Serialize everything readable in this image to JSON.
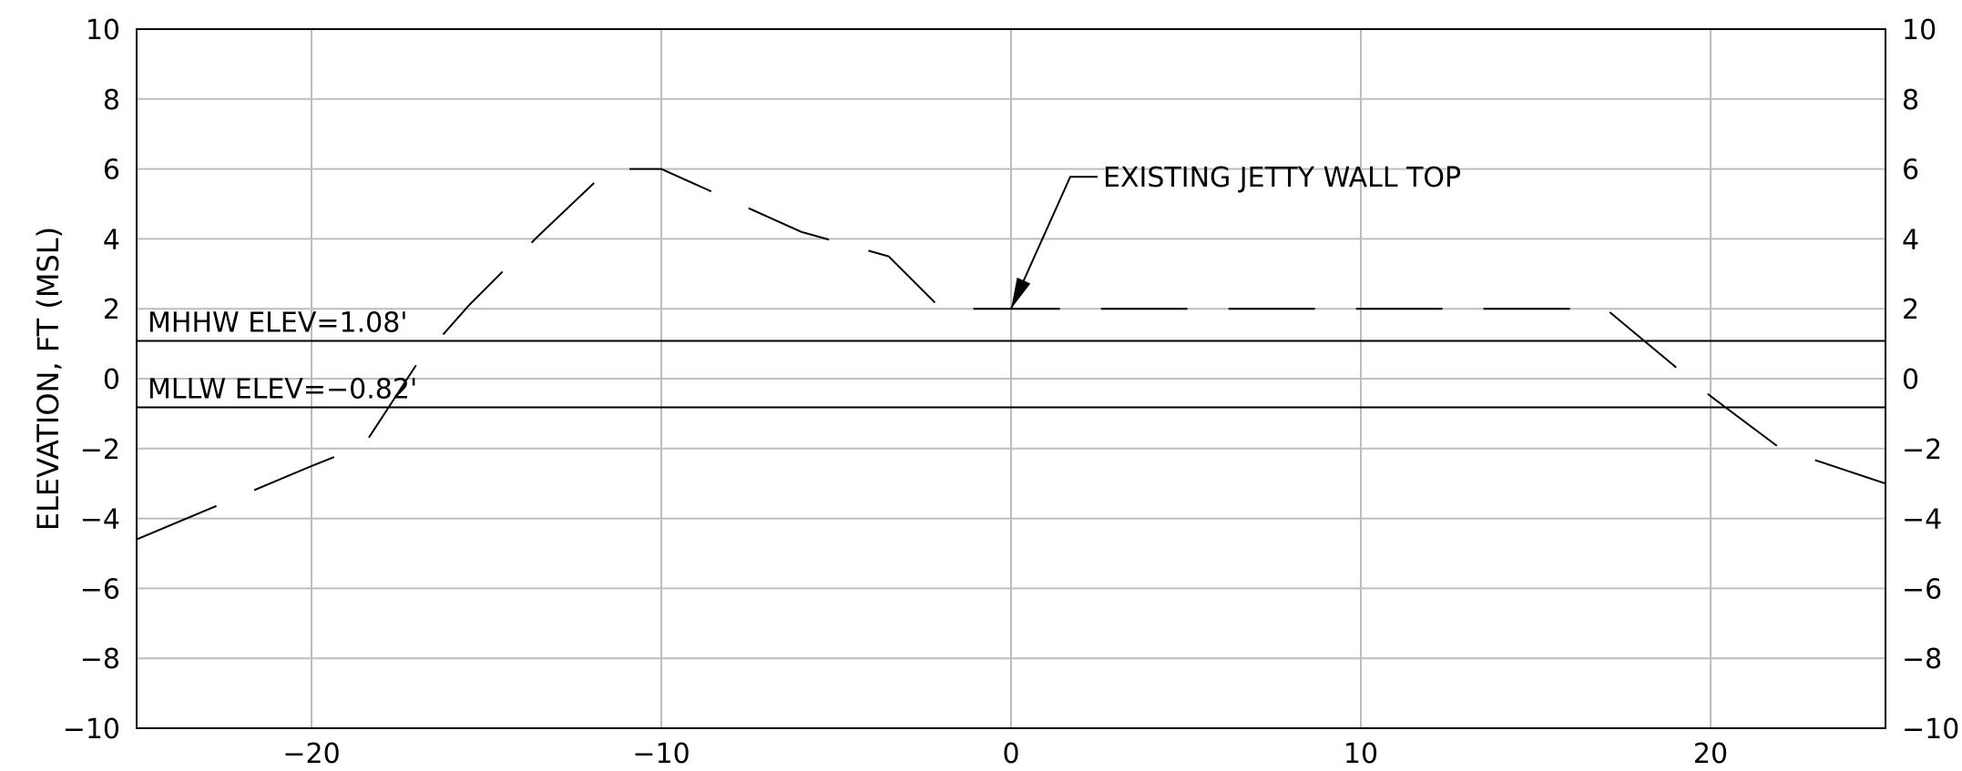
{
  "chart_data": {
    "type": "line",
    "title": "",
    "xlabel": "",
    "ylabel": "ELEVATION, FT (MSL)",
    "xlim": [
      -25,
      25
    ],
    "ylim": [
      -10,
      10
    ],
    "xticks": [
      -20,
      -10,
      0,
      10,
      20
    ],
    "xtick_labels": [
      "−20",
      "−10",
      "0",
      "10",
      "20"
    ],
    "yticks": [
      -10,
      -8,
      -6,
      -4,
      -2,
      0,
      2,
      4,
      6,
      8,
      10
    ],
    "ytick_labels": [
      "−10",
      "−8",
      "−6",
      "−4",
      "−2",
      "0",
      "2",
      "4",
      "6",
      "8",
      "10"
    ],
    "grid": true,
    "reference_lines": [
      {
        "label": "MHHW ELEV=1.08'",
        "y": 1.08
      },
      {
        "label": "MLLW ELEV=−0.82'",
        "y": -0.82
      }
    ],
    "series": [
      {
        "style": "dashed",
        "x": [
          -25,
          -20,
          -18.5,
          -17,
          -15.5,
          -13.5,
          -11.5,
          -10,
          -6,
          -3.5,
          -2,
          0,
          16.5,
          17,
          20,
          22,
          25
        ],
        "y": [
          -4.6,
          -2.5,
          -1.9,
          0.4,
          2.1,
          4.1,
          6.0,
          6.0,
          4.2,
          3.5,
          2.0,
          2.0,
          2.0,
          2.0,
          -0.5,
          -2.0,
          -3.0
        ]
      }
    ],
    "annotations": [
      {
        "text": "EXISTING JETTY WALL TOP",
        "x": 0,
        "y": 2
      }
    ],
    "colors": {
      "line": "#000000",
      "grid": "#bdbdbd"
    }
  }
}
